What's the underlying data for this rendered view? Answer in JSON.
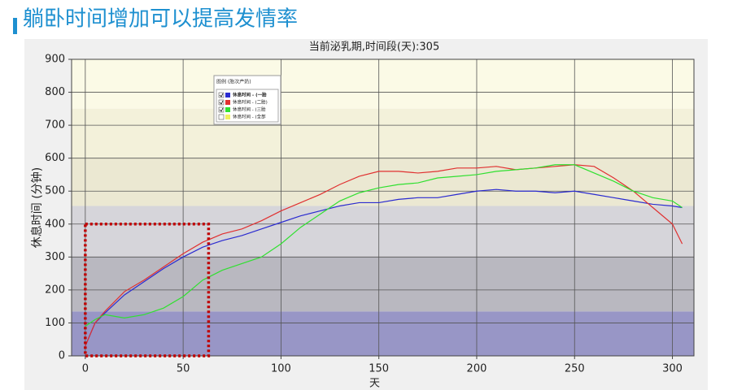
{
  "slide_title": "躺卧时间增加可以提高发情率",
  "chart_data": {
    "type": "line",
    "title": "当前泌乳期,时间段(天):305",
    "xlabel": "天",
    "ylabel": "休息时间 (分钟)",
    "xlim": [
      -7,
      311
    ],
    "ylim": [
      0,
      900
    ],
    "xticks": [
      0,
      50,
      100,
      150,
      200,
      250,
      300
    ],
    "yticks": [
      0,
      100,
      200,
      300,
      400,
      500,
      600,
      700,
      800,
      900
    ],
    "grid": true,
    "bands": [
      {
        "from": 0,
        "to": 135,
        "color": "#9896c6"
      },
      {
        "from": 135,
        "to": 300,
        "color": "#b9b8c0"
      },
      {
        "from": 300,
        "to": 455,
        "color": "#d6d5da"
      },
      {
        "from": 455,
        "to": 600,
        "color": "#ebe8d2"
      },
      {
        "from": 600,
        "to": 750,
        "color": "#f3f1da"
      },
      {
        "from": 750,
        "to": 900,
        "color": "#fbfae6"
      }
    ],
    "highlight": {
      "x": [
        0,
        63
      ],
      "y": [
        0,
        400
      ],
      "color": "#c00000"
    },
    "legend_title": "图例 (胎次产奶)",
    "x": [
      0,
      5,
      10,
      20,
      30,
      40,
      50,
      60,
      70,
      80,
      90,
      100,
      110,
      120,
      130,
      140,
      150,
      160,
      170,
      180,
      190,
      200,
      210,
      220,
      230,
      240,
      250,
      260,
      270,
      280,
      290,
      300,
      305
    ],
    "series": [
      {
        "name": "休息时间 - (一胎",
        "color": "#2b2bd0",
        "checked": true,
        "values": [
          30,
          100,
          130,
          185,
          225,
          265,
          300,
          330,
          350,
          365,
          385,
          405,
          425,
          440,
          455,
          465,
          465,
          475,
          480,
          480,
          490,
          500,
          505,
          500,
          500,
          495,
          500,
          490,
          480,
          470,
          460,
          455,
          450
        ]
      },
      {
        "name": "休息时间 - (二胎)",
        "color": "#e03030",
        "checked": true,
        "values": [
          30,
          100,
          135,
          195,
          230,
          270,
          310,
          345,
          370,
          385,
          410,
          440,
          465,
          490,
          520,
          545,
          560,
          560,
          555,
          560,
          570,
          570,
          575,
          565,
          570,
          575,
          580,
          575,
          540,
          500,
          450,
          400,
          340
        ]
      },
      {
        "name": "休息时间 - (三胎",
        "color": "#30e030",
        "checked": true,
        "values": [
          90,
          110,
          125,
          115,
          125,
          145,
          180,
          230,
          260,
          280,
          300,
          340,
          390,
          430,
          470,
          495,
          510,
          520,
          525,
          540,
          545,
          550,
          560,
          565,
          570,
          580,
          580,
          555,
          530,
          500,
          480,
          470,
          450
        ]
      },
      {
        "name": "休息时间 - (全部",
        "color": "#f0f060",
        "checked": false,
        "values": [
          null,
          null,
          null,
          null,
          null,
          null,
          null,
          null,
          null,
          null,
          null,
          null,
          null,
          null,
          null,
          null,
          null,
          null,
          null,
          null,
          null,
          null,
          null,
          null,
          null,
          null,
          null,
          null,
          null,
          null,
          null,
          null,
          null
        ]
      }
    ]
  }
}
